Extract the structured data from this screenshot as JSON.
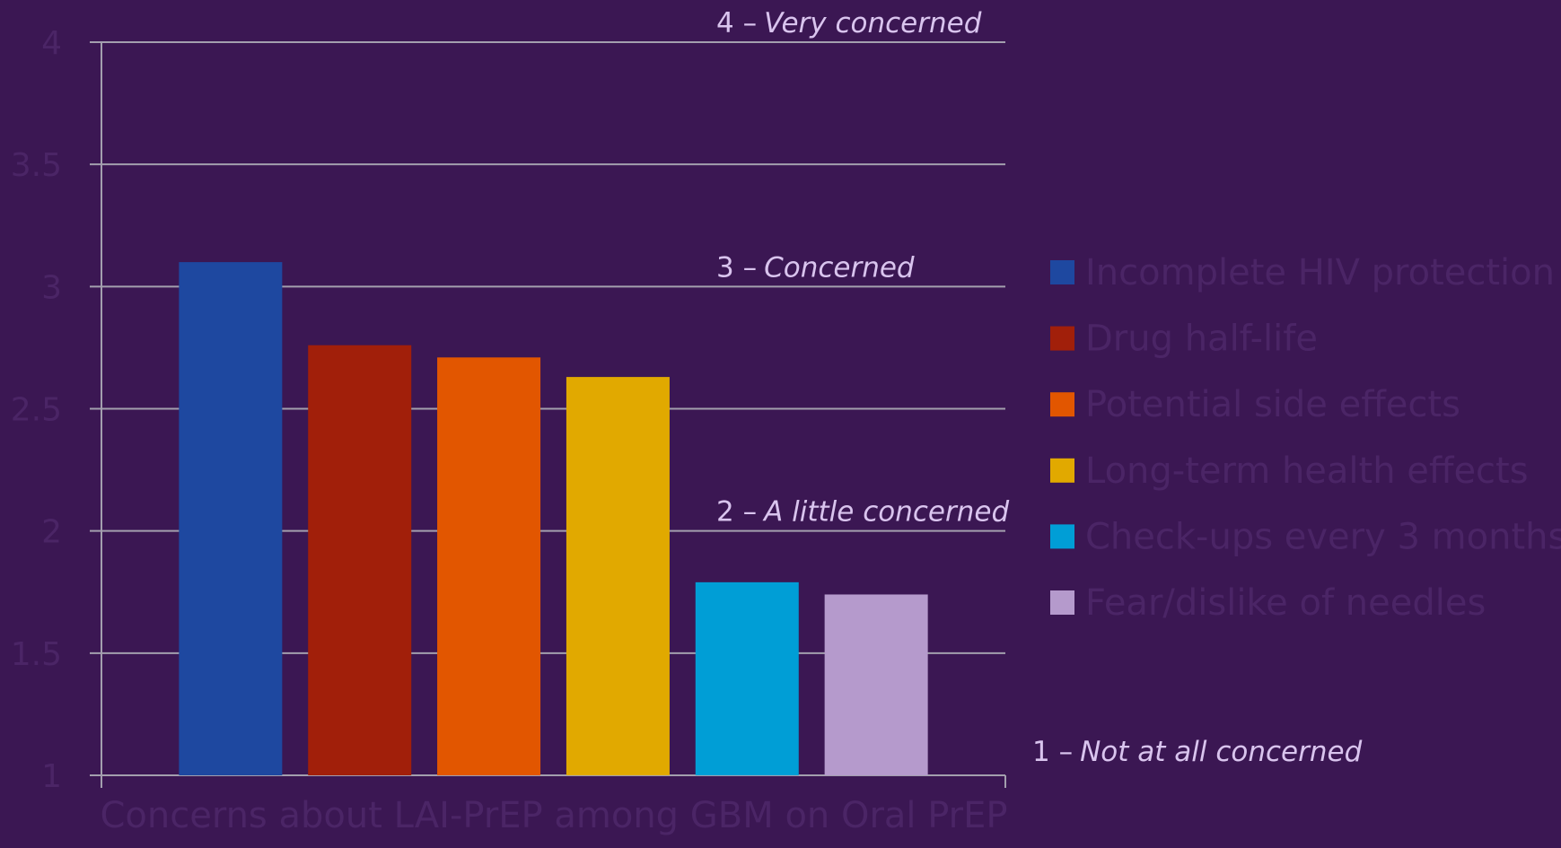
{
  "chart_data": {
    "type": "bar",
    "title": "Concerns about LAI-PrEP among GBM on Oral PrEP",
    "series": [
      {
        "name": "Incomplete HIV protection",
        "color": "#1e48a0",
        "values": [
          3.1
        ]
      },
      {
        "name": "Drug half-life",
        "color": "#a11f0a",
        "values": [
          2.76
        ]
      },
      {
        "name": "Potential side effects",
        "color": "#e25600",
        "values": [
          2.71
        ]
      },
      {
        "name": "Long-term health effects",
        "color": "#e1a900",
        "values": [
          2.63
        ]
      },
      {
        "name": "Check-ups every 3 months",
        "color": "#009ed6",
        "values": [
          1.79
        ]
      },
      {
        "name": "Fear/dislike of needles",
        "color": "#b59acc",
        "values": [
          1.74
        ]
      }
    ],
    "ylim": [
      1,
      4
    ],
    "yticks": [
      1,
      1.5,
      2,
      2.5,
      3,
      3.5,
      4
    ],
    "grid": true,
    "legend": "right",
    "annotations": [
      {
        "y": 4,
        "level": "4 –",
        "label": "Very concerned"
      },
      {
        "y": 3,
        "level": "3 –",
        "label": "Concerned"
      },
      {
        "y": 2,
        "level": "2 –",
        "label": "A little concerned"
      },
      {
        "y": 1,
        "level": "1 –",
        "label": "Not at all concerned"
      }
    ]
  }
}
